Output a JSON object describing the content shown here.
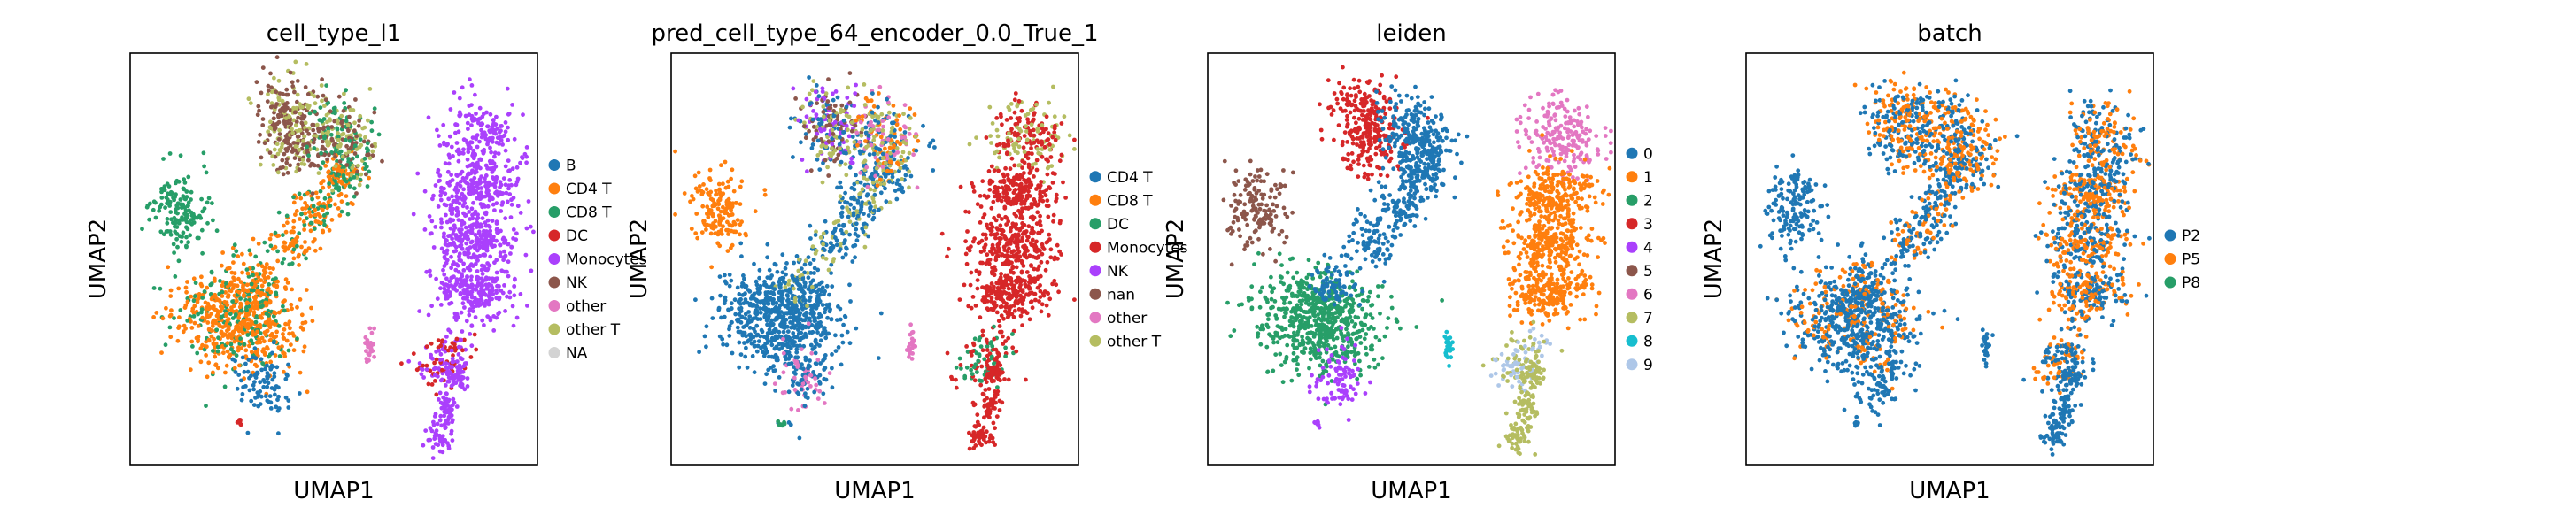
{
  "chart_data": [
    {
      "type": "scatter",
      "title": "cell_type_l1",
      "xlabel": "UMAP1",
      "ylabel": "UMAP2",
      "grid": false,
      "legend_position": "right",
      "categories": [
        {
          "name": "B",
          "color": "#1f77b4"
        },
        {
          "name": "CD4 T",
          "color": "#ff7f0e"
        },
        {
          "name": "CD8 T",
          "color": "#279e68"
        },
        {
          "name": "DC",
          "color": "#d62728"
        },
        {
          "name": "Monocytes",
          "color": "#aa40fc"
        },
        {
          "name": "NK",
          "color": "#8c564b"
        },
        {
          "name": "other",
          "color": "#e377c2"
        },
        {
          "name": "other T",
          "color": "#b5bd61"
        },
        {
          "name": "NA",
          "color": "#d3d3d3"
        }
      ]
    },
    {
      "type": "scatter",
      "title": "pred_cell_type_64_encoder_0.0_True_1",
      "xlabel": "UMAP1",
      "ylabel": "UMAP2",
      "grid": false,
      "legend_position": "right",
      "categories": [
        {
          "name": "CD4 T",
          "color": "#1f77b4"
        },
        {
          "name": "CD8 T",
          "color": "#ff7f0e"
        },
        {
          "name": "DC",
          "color": "#279e68"
        },
        {
          "name": "Monocytes",
          "color": "#d62728"
        },
        {
          "name": "NK",
          "color": "#aa40fc"
        },
        {
          "name": "nan",
          "color": "#8c564b"
        },
        {
          "name": "other",
          "color": "#e377c2"
        },
        {
          "name": "other T",
          "color": "#b5bd61"
        }
      ]
    },
    {
      "type": "scatter",
      "title": "leiden",
      "xlabel": "UMAP1",
      "ylabel": "UMAP2",
      "grid": false,
      "legend_position": "right",
      "categories": [
        {
          "name": "0",
          "color": "#1f77b4"
        },
        {
          "name": "1",
          "color": "#ff7f0e"
        },
        {
          "name": "2",
          "color": "#279e68"
        },
        {
          "name": "3",
          "color": "#d62728"
        },
        {
          "name": "4",
          "color": "#aa40fc"
        },
        {
          "name": "5",
          "color": "#8c564b"
        },
        {
          "name": "6",
          "color": "#e377c2"
        },
        {
          "name": "7",
          "color": "#b5bd61"
        },
        {
          "name": "8",
          "color": "#17becf"
        },
        {
          "name": "9",
          "color": "#aec7e8"
        }
      ]
    },
    {
      "type": "scatter",
      "title": "batch",
      "xlabel": "UMAP1",
      "ylabel": "UMAP2",
      "grid": false,
      "legend_position": "right",
      "categories": [
        {
          "name": "P2",
          "color": "#1f77b4"
        },
        {
          "name": "P5",
          "color": "#ff7f0e"
        },
        {
          "name": "P8",
          "color": "#279e68"
        }
      ]
    }
  ]
}
